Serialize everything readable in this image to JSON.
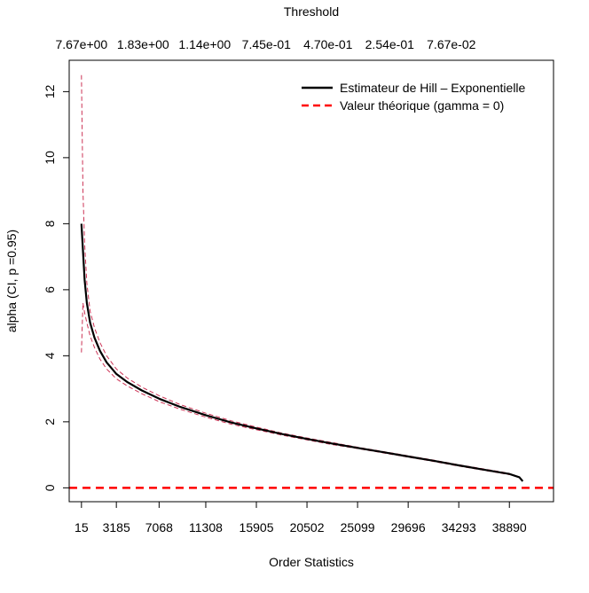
{
  "chart_data": {
    "type": "line",
    "top_axis_title": "Threshold",
    "xlabel": "Order Statistics",
    "ylabel": "alpha (CI, p =0.95)",
    "x_ticks": [
      15,
      3185,
      7068,
      11308,
      15905,
      20502,
      25099,
      29696,
      34293,
      38890
    ],
    "top_ticks": [
      {
        "x": 15,
        "label": "7.67e+00"
      },
      {
        "x": 5615,
        "label": "1.83e+00"
      },
      {
        "x": 11215,
        "label": "1.14e+00"
      },
      {
        "x": 16815,
        "label": "7.45e-01"
      },
      {
        "x": 22415,
        "label": "4.70e-01"
      },
      {
        "x": 28015,
        "label": "2.54e-01"
      },
      {
        "x": 33615,
        "label": "7.67e-02"
      }
    ],
    "y_ticks": [
      0,
      2,
      4,
      6,
      8,
      10,
      12
    ],
    "xlim": [
      -1100,
      42900
    ],
    "ylim": [
      -0.42,
      12.95
    ],
    "grid": false,
    "legend_position": "top-right",
    "series": [
      {
        "name": "Estimateur de Hill – Exponentielle",
        "color": "#000000",
        "style": "solid",
        "points": [
          [
            15,
            8.0
          ],
          [
            150,
            7.2
          ],
          [
            300,
            6.3
          ],
          [
            500,
            5.6
          ],
          [
            800,
            5.0
          ],
          [
            1200,
            4.55
          ],
          [
            1700,
            4.15
          ],
          [
            2300,
            3.8
          ],
          [
            3185,
            3.45
          ],
          [
            4200,
            3.2
          ],
          [
            5500,
            2.95
          ],
          [
            7068,
            2.7
          ],
          [
            9000,
            2.45
          ],
          [
            11308,
            2.2
          ],
          [
            13600,
            1.98
          ],
          [
            15905,
            1.8
          ],
          [
            18200,
            1.63
          ],
          [
            20502,
            1.48
          ],
          [
            22800,
            1.34
          ],
          [
            25099,
            1.21
          ],
          [
            27400,
            1.08
          ],
          [
            29696,
            0.95
          ],
          [
            32000,
            0.82
          ],
          [
            34293,
            0.68
          ],
          [
            36600,
            0.55
          ],
          [
            38890,
            0.42
          ],
          [
            39800,
            0.32
          ],
          [
            40100,
            0.2
          ]
        ]
      },
      {
        "name": "Valeur théorique (gamma = 0)",
        "color": "#ff0000",
        "style": "dashed",
        "constant_y": 0
      }
    ],
    "ci_band": {
      "color": "#cc3355",
      "upper": [
        [
          15,
          12.5
        ],
        [
          150,
          9.0
        ],
        [
          300,
          7.4
        ],
        [
          500,
          6.2
        ],
        [
          800,
          5.35
        ],
        [
          1200,
          4.85
        ],
        [
          1700,
          4.4
        ],
        [
          2300,
          4.0
        ],
        [
          3185,
          3.6
        ],
        [
          4200,
          3.32
        ],
        [
          5500,
          3.05
        ],
        [
          7068,
          2.79
        ],
        [
          9000,
          2.52
        ],
        [
          11308,
          2.26
        ],
        [
          13600,
          2.03
        ],
        [
          15905,
          1.84
        ],
        [
          18200,
          1.66
        ],
        [
          20502,
          1.51
        ],
        [
          22800,
          1.37
        ],
        [
          25099,
          1.23
        ],
        [
          27400,
          1.1
        ],
        [
          29696,
          0.97
        ],
        [
          32000,
          0.84
        ],
        [
          34293,
          0.7
        ],
        [
          36600,
          0.57
        ],
        [
          38890,
          0.44
        ]
      ],
      "lower": [
        [
          15,
          4.1
        ],
        [
          150,
          5.6
        ],
        [
          300,
          5.3
        ],
        [
          500,
          5.0
        ],
        [
          800,
          4.6
        ],
        [
          1200,
          4.25
        ],
        [
          1700,
          3.9
        ],
        [
          2300,
          3.6
        ],
        [
          3185,
          3.3
        ],
        [
          4200,
          3.08
        ],
        [
          5500,
          2.85
        ],
        [
          7068,
          2.61
        ],
        [
          9000,
          2.38
        ],
        [
          11308,
          2.14
        ],
        [
          13600,
          1.93
        ],
        [
          15905,
          1.76
        ],
        [
          18200,
          1.6
        ],
        [
          20502,
          1.45
        ],
        [
          22800,
          1.31
        ],
        [
          25099,
          1.19
        ],
        [
          27400,
          1.06
        ],
        [
          29696,
          0.93
        ],
        [
          32000,
          0.8
        ],
        [
          34293,
          0.66
        ],
        [
          36600,
          0.53
        ],
        [
          38890,
          0.4
        ]
      ]
    }
  }
}
